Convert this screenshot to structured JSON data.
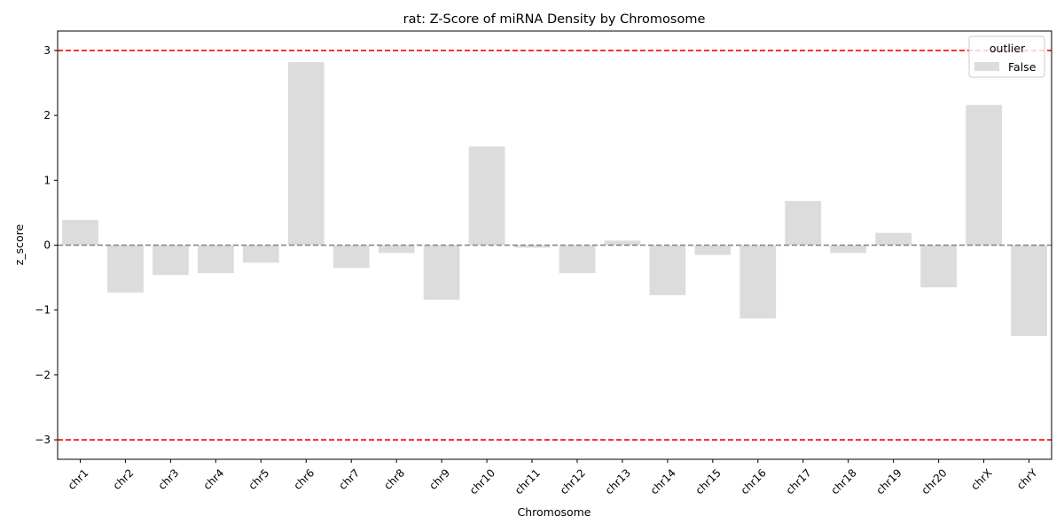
{
  "chart_data": {
    "type": "bar",
    "title": "rat: Z-Score of miRNA Density by Chromosome",
    "xlabel": "Chromosome",
    "ylabel": "z_score",
    "categories": [
      "chr1",
      "chr2",
      "chr3",
      "chr4",
      "chr5",
      "chr6",
      "chr7",
      "chr8",
      "chr9",
      "chr10",
      "chr11",
      "chr12",
      "chr13",
      "chr14",
      "chr15",
      "chr16",
      "chr17",
      "chr18",
      "chr19",
      "chr20",
      "chrX",
      "chrY"
    ],
    "values": [
      0.39,
      -0.73,
      -0.46,
      -0.43,
      -0.27,
      2.82,
      -0.35,
      -0.12,
      -0.84,
      1.52,
      -0.04,
      -0.43,
      0.07,
      -0.77,
      -0.15,
      -1.13,
      0.68,
      -0.12,
      0.19,
      -0.65,
      2.16,
      -1.4
    ],
    "ylim": [
      -3.3,
      3.3
    ],
    "yticks": [
      -3,
      -2,
      -1,
      0,
      1,
      2,
      3
    ],
    "ytick_labels": [
      "−3",
      "−2",
      "−1",
      "0",
      "1",
      "2",
      "3"
    ],
    "reference_lines": [
      {
        "y": 3,
        "color": "#ff0000",
        "style": "dashed"
      },
      {
        "y": -3,
        "color": "#ff0000",
        "style": "dashed"
      },
      {
        "y": 0,
        "color": "#808080",
        "style": "dashed"
      }
    ],
    "legend": {
      "title": "outlier",
      "entries": [
        {
          "label": "False",
          "color": "#dcdcdc"
        }
      ],
      "position": "top-right"
    },
    "bar_color": "#dcdcdc",
    "grid": false
  }
}
